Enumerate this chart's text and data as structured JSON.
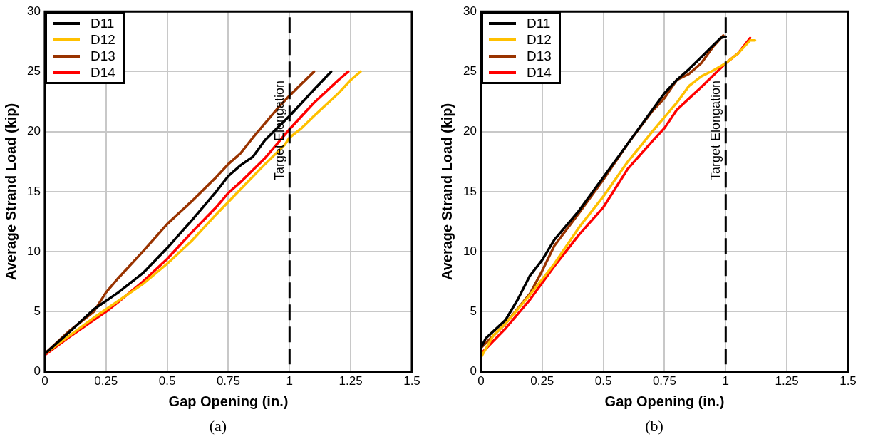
{
  "chart_data": [
    {
      "type": "line",
      "xlabel": "Gap Opening (in.)",
      "ylabel": "Average Strand Load (kip)",
      "xlim": [
        0,
        1.5
      ],
      "ylim": [
        0,
        30
      ],
      "xticks": [
        0,
        0.25,
        0.5,
        0.75,
        1,
        1.25,
        1.5
      ],
      "yticks": [
        0,
        5,
        10,
        15,
        20,
        25,
        30
      ],
      "grid": true,
      "legend": "top left",
      "marker": "none",
      "line_style": "solid",
      "annotations": [
        "(a)"
      ],
      "ref_lines": [
        {
          "axis": "x",
          "value": 1,
          "label": "Target Elongation",
          "color": "#000000",
          "line_style": "dashed"
        }
      ],
      "series": [
        {
          "name": "D11",
          "color": "#000000",
          "x": [
            0,
            0.1,
            0.2,
            0.25,
            0.3,
            0.4,
            0.5,
            0.6,
            0.7,
            0.75,
            0.8,
            0.85,
            0.9,
            0.95,
            1,
            1.05,
            1.1,
            1.17
          ],
          "values": [
            1.5,
            3.3,
            5.2,
            5.9,
            6.6,
            8.2,
            10.3,
            12.6,
            15,
            16.3,
            17.2,
            17.9,
            19.3,
            20.3,
            21.3,
            22.4,
            23.5,
            25
          ]
        },
        {
          "name": "D12",
          "color": "#ffc000",
          "x": [
            0,
            0.1,
            0.2,
            0.25,
            0.3,
            0.4,
            0.5,
            0.6,
            0.7,
            0.8,
            0.9,
            0.98,
            1,
            1.05,
            1.1,
            1.2,
            1.25,
            1.29
          ],
          "values": [
            1.5,
            3,
            4.5,
            5.2,
            5.9,
            7.3,
            9,
            10.9,
            13.1,
            15.2,
            17.3,
            18.9,
            19.5,
            20.3,
            21.3,
            23.2,
            24.3,
            25
          ]
        },
        {
          "name": "D13",
          "color": "#993300",
          "x": [
            0,
            0.1,
            0.2,
            0.25,
            0.3,
            0.4,
            0.5,
            0.6,
            0.7,
            0.75,
            0.8,
            0.85,
            0.9,
            0.95,
            1,
            1.05,
            1.1
          ],
          "values": [
            1.5,
            3.4,
            5,
            6.6,
            7.8,
            10,
            12.3,
            14.2,
            16.2,
            17.3,
            18.2,
            19.5,
            20.7,
            21.9,
            23,
            24,
            25
          ]
        },
        {
          "name": "D14",
          "color": "#ff0000",
          "x": [
            0,
            0.1,
            0.2,
            0.25,
            0.3,
            0.4,
            0.5,
            0.6,
            0.7,
            0.75,
            0.8,
            0.9,
            1,
            1.05,
            1.1,
            1.2,
            1.24
          ],
          "values": [
            1.4,
            2.9,
            4.3,
            5,
            5.8,
            7.5,
            9.4,
            11.6,
            13.7,
            14.9,
            15.8,
            17.8,
            20.2,
            21.3,
            22.4,
            24.3,
            25
          ]
        }
      ]
    },
    {
      "type": "line",
      "xlabel": "Gap Opening (in.)",
      "ylabel": "Average Strand Load (kip)",
      "xlim": [
        0,
        1.5
      ],
      "ylim": [
        0,
        30
      ],
      "xticks": [
        0,
        0.25,
        0.5,
        0.75,
        1,
        1.25,
        1.5
      ],
      "yticks": [
        0,
        5,
        10,
        15,
        20,
        25,
        30
      ],
      "grid": true,
      "legend": "top left",
      "marker": "none",
      "line_style": "solid",
      "annotations": [
        "(b)"
      ],
      "ref_lines": [
        {
          "axis": "x",
          "value": 1,
          "label": "Target Elongation",
          "color": "#000000",
          "line_style": "dashed"
        }
      ],
      "series": [
        {
          "name": "D11",
          "color": "#000000",
          "x": [
            0,
            0.02,
            0.1,
            0.15,
            0.2,
            0.25,
            0.3,
            0.4,
            0.5,
            0.6,
            0.7,
            0.75,
            0.8,
            0.85,
            0.9,
            0.95,
            0.98,
            1
          ],
          "values": [
            2,
            2.8,
            4.3,
            6,
            8,
            9.3,
            11,
            13.4,
            16.2,
            19,
            21.8,
            23.2,
            24.3,
            25.2,
            26.2,
            27.2,
            27.8,
            27.9
          ]
        },
        {
          "name": "D12",
          "color": "#ffc000",
          "x": [
            0,
            0.05,
            0.1,
            0.2,
            0.3,
            0.4,
            0.5,
            0.6,
            0.7,
            0.75,
            0.8,
            0.85,
            0.9,
            0.95,
            1,
            1.05,
            1.1,
            1.12
          ],
          "values": [
            1.2,
            3,
            4,
            6.4,
            9,
            12,
            14.6,
            17.5,
            20,
            21.2,
            22.4,
            23.8,
            24.6,
            25.1,
            25.7,
            26.5,
            27.6,
            27.6
          ]
        },
        {
          "name": "D13",
          "color": "#993300",
          "x": [
            0,
            0.1,
            0.2,
            0.25,
            0.3,
            0.4,
            0.5,
            0.6,
            0.7,
            0.75,
            0.8,
            0.85,
            0.9,
            0.95,
            0.99
          ],
          "values": [
            2,
            4,
            6.5,
            8.4,
            10.5,
            13.2,
            16,
            19,
            21.7,
            22.8,
            24.3,
            24.8,
            25.7,
            27.1,
            28
          ]
        },
        {
          "name": "D14",
          "color": "#ff0000",
          "x": [
            0,
            0.1,
            0.2,
            0.3,
            0.4,
            0.5,
            0.6,
            0.7,
            0.75,
            0.8,
            0.9,
            0.95,
            1,
            1.05,
            1.1
          ],
          "values": [
            1.5,
            3.6,
            6,
            8.8,
            11.4,
            13.7,
            16.9,
            19.2,
            20.3,
            21.8,
            23.7,
            24.7,
            25.7,
            26.5,
            27.8
          ]
        }
      ]
    }
  ]
}
